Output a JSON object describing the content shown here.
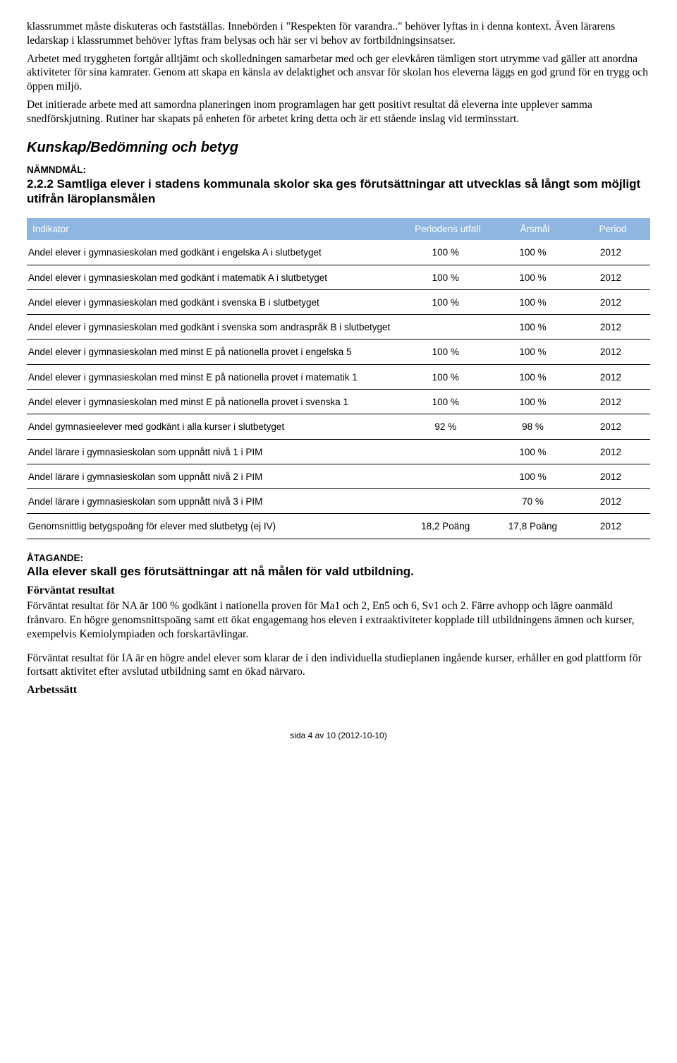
{
  "paragraphs": {
    "p1": "klassrummet måste diskuteras och fastställas. Innebörden i \"Respekten för varandra..\" behöver lyftas in i denna kontext. Även lärarens ledarskap i klassrummet behöver lyftas fram belysas och här ser vi behov av fortbildningsinsatser.",
    "p2": "Arbetet med tryggheten fortgår alltjämt och skolledningen samarbetar med och ger elevkåren tämligen stort utrymme vad gäller att anordna aktiviteter för sina kamrater. Genom att skapa en känsla av delaktighet och ansvar för skolan hos eleverna läggs en god grund för en trygg och öppen miljö.",
    "p3": "Det initierade arbete med att samordna planeringen inom programlagen har gett positivt resultat då eleverna inte upplever samma snedförskjutning. Rutiner har skapats på enheten för arbetet kring detta och är ett stående inslag vid terminsstart."
  },
  "section_title": "Kunskap/Bedömning och betyg",
  "namndmal_label": "NÄMNDMÅL:",
  "goal_title": "2.2.2 Samtliga elever i stadens kommunala skolor ska ges förutsättningar att utvecklas så långt som möjligt utifrån läroplansmålen",
  "table": {
    "headers": {
      "indicator": "Indikator",
      "utfall": "Periodens utfall",
      "arsmal": "Årsmål",
      "period": "Period"
    },
    "rows": [
      {
        "ind": "Andel elever i gymnasieskolan med godkänt i engelska A i slutbetyget",
        "utfall": "100 %",
        "arsmal": "100 %",
        "period": "2012"
      },
      {
        "ind": "Andel elever i gymnasieskolan med godkänt i matematik A i slutbetyget",
        "utfall": "100 %",
        "arsmal": "100 %",
        "period": "2012"
      },
      {
        "ind": "Andel elever i gymnasieskolan med godkänt i svenska B i slutbetyget",
        "utfall": "100 %",
        "arsmal": "100 %",
        "period": "2012"
      },
      {
        "ind": "Andel elever i gymnasieskolan med godkänt i svenska som andraspråk B i slutbetyget",
        "utfall": "",
        "arsmal": "100 %",
        "period": "2012"
      },
      {
        "ind": "Andel elever i gymnasieskolan med minst E på nationella provet i engelska 5",
        "utfall": "100 %",
        "arsmal": "100 %",
        "period": "2012"
      },
      {
        "ind": "Andel elever i gymnasieskolan med minst E på nationella provet i matematik 1",
        "utfall": "100 %",
        "arsmal": "100 %",
        "period": "2012"
      },
      {
        "ind": "Andel elever i gymnasieskolan med minst E på nationella provet i svenska 1",
        "utfall": "100 %",
        "arsmal": "100 %",
        "period": "2012"
      },
      {
        "ind": "Andel gymnasieelever med godkänt i alla kurser i slutbetyget",
        "utfall": "92 %",
        "arsmal": "98 %",
        "period": "2012"
      },
      {
        "ind": "Andel lärare i gymnasieskolan som uppnått nivå 1 i PIM",
        "utfall": "",
        "arsmal": "100 %",
        "period": "2012"
      },
      {
        "ind": "Andel lärare i gymnasieskolan som uppnått nivå 2 i PIM",
        "utfall": "",
        "arsmal": "100 %",
        "period": "2012"
      },
      {
        "ind": "Andel lärare i gymnasieskolan som uppnått nivå 3 i PIM",
        "utfall": "",
        "arsmal": "70 %",
        "period": "2012"
      },
      {
        "ind": "Genomsnittlig betygspoäng för elever med slutbetyg (ej IV)",
        "utfall": "18,2 Poäng",
        "arsmal": "17,8 Poäng",
        "period": "2012"
      }
    ],
    "styling": {
      "header_bg": "#8db7e1",
      "header_color": "#ffffff",
      "row_border_color": "#000000",
      "font_family": "Arial",
      "font_size_pt": 10,
      "col_widths_pct": [
        60,
        15,
        13,
        12
      ]
    }
  },
  "atagande_label": "ÅTAGANDE:",
  "atagande_title": "Alla elever skall ges förutsättningar att nå målen för vald utbildning.",
  "forvantat_heading": "Förväntat resultat",
  "forvantat_p1": "Förväntat resultat för NA är 100 % godkänt i nationella proven för Ma1 och 2, En5 och 6, Sv1 och 2. Färre avhopp och lägre oanmäld frånvaro. En högre genomsnittspoäng samt ett ökat engagemang hos eleven i extraaktiviteter kopplade till utbildningens ämnen och kurser, exempelvis Kemiolympiaden och forskartävlingar.",
  "forvantat_p2": "Förväntat resultat för IA är en högre andel elever som klarar de i den individuella studieplanen ingående kurser, erhåller en god plattform för fortsatt aktivitet efter avslutad utbildning samt en ökad närvaro.",
  "arbetssatt_heading": "Arbetssätt",
  "footer": "sida 4 av 10 (2012-10-10)"
}
